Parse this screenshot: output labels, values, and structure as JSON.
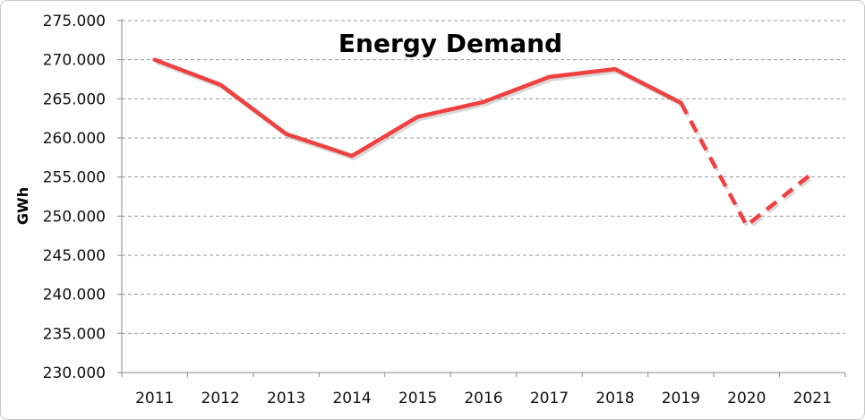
{
  "chart_data": {
    "type": "line",
    "title": "Energy Demand",
    "xlabel": "",
    "ylabel": "GWh",
    "categories": [
      "2011",
      "2012",
      "2013",
      "2014",
      "2015",
      "2016",
      "2017",
      "2018",
      "2019",
      "2020",
      "2021"
    ],
    "series": [
      {
        "values": [
          270000,
          266800,
          260500,
          257700,
          262700,
          264600,
          267800,
          268800,
          264500,
          248800,
          255500
        ],
        "color": "#f04040",
        "dashed_from_category": "2019"
      }
    ],
    "ylim": [
      230000,
      275000
    ],
    "yticks": [
      230000,
      235000,
      240000,
      245000,
      250000,
      255000,
      260000,
      265000,
      270000,
      275000
    ],
    "ytick_labels": [
      "230.000",
      "235.000",
      "240.000",
      "245.000",
      "250.000",
      "255.000",
      "260.000",
      "265.000",
      "270.000",
      "275.000"
    ],
    "grid": "horizontal-dashed",
    "legend": "none"
  }
}
